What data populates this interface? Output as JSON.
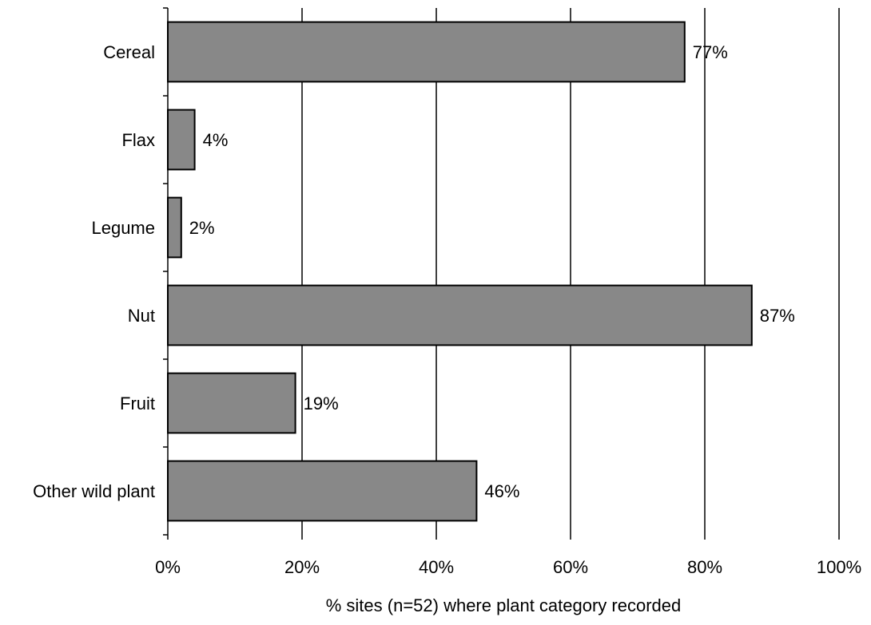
{
  "chart_data": {
    "type": "bar",
    "orientation": "horizontal",
    "categories": [
      "Cereal",
      "Flax",
      "Legume",
      "Nut",
      "Fruit",
      "Other wild plant"
    ],
    "values": [
      77,
      4,
      2,
      87,
      19,
      46
    ],
    "data_labels": [
      "77%",
      "4%",
      "2%",
      "87%",
      "19%",
      "46%"
    ],
    "xlabel": "% sites (n=52) where plant category recorded",
    "ylabel": "",
    "title": "",
    "xlim": [
      0,
      100
    ],
    "x_ticks": [
      0,
      20,
      40,
      60,
      80,
      100
    ],
    "x_tick_labels": [
      "0%",
      "20%",
      "40%",
      "60%",
      "80%",
      "100%"
    ],
    "grid": "vertical",
    "legend": "none",
    "bar_color": "#888888",
    "bar_edge_color": "#000000"
  }
}
